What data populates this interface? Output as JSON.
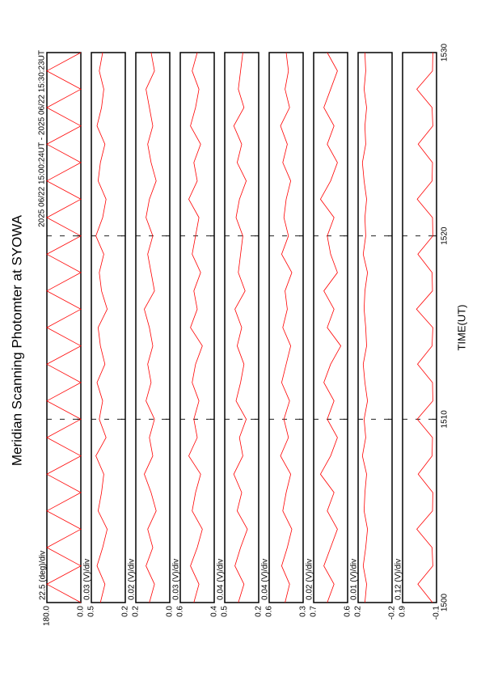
{
  "chart_data": {
    "type": "line",
    "title": "Meridian Scanning Photomter at SYOWA",
    "subtitle": "2025 06/22 15:00:24UT - 2025 06/22 15:30:23UT",
    "x_label": "TIME(UT)",
    "x": [
      1500,
      1501,
      1502,
      1503,
      1504,
      1505,
      1506,
      1507,
      1508,
      1509,
      1510,
      1511,
      1512,
      1513,
      1514,
      1515,
      1516,
      1517,
      1518,
      1519,
      1520,
      1521,
      1522,
      1523,
      1524,
      1525,
      1526,
      1527,
      1528,
      1529,
      1530
    ],
    "xlim": [
      1500,
      1530
    ],
    "xticks": [
      1500,
      1510,
      1520,
      1530
    ],
    "grid": true,
    "panels": [
      {
        "scale_label": "22.5 (deg)/div",
        "color": "#ff0000",
        "ylim": [
          0,
          180
        ],
        "yticks": [
          {
            "value": 180,
            "label": "180.0"
          },
          {
            "value": 0,
            "label": "0.0"
          }
        ],
        "values": [
          0,
          180,
          0,
          180,
          0,
          180,
          0,
          180,
          0,
          180,
          0,
          180,
          0,
          180,
          0,
          180,
          0,
          180,
          0,
          180,
          0,
          180,
          0,
          180,
          0,
          180,
          0,
          180,
          0,
          180,
          0
        ]
      },
      {
        "scale_label": "0.03 (V)/div",
        "color": "#ff0000",
        "ylim": [
          0.2,
          0.5
        ],
        "yticks": [
          0.5,
          0.2
        ],
        "values": [
          0.42,
          0.38,
          0.45,
          0.4,
          0.36,
          0.44,
          0.41,
          0.39,
          0.46,
          0.37,
          0.43,
          0.4,
          0.45,
          0.38,
          0.42,
          0.44,
          0.36,
          0.41,
          0.43,
          0.39,
          0.46,
          0.4,
          0.37,
          0.44,
          0.42,
          0.38,
          0.45,
          0.41,
          0.39,
          0.43,
          0.4
        ]
      },
      {
        "scale_label": "0.02 (V)/div",
        "color": "#ff0000",
        "ylim": [
          0,
          0.2
        ],
        "yticks": [
          0.2,
          {
            "value": 0,
            "label": "0.0"
          }
        ],
        "values": [
          0.12,
          0.09,
          0.14,
          0.1,
          0.13,
          0.08,
          0.11,
          0.15,
          0.1,
          0.12,
          0.09,
          0.14,
          0.11,
          0.13,
          0.1,
          0.12,
          0.15,
          0.09,
          0.11,
          0.13,
          0.1,
          0.14,
          0.12,
          0.08,
          0.11,
          0.13,
          0.1,
          0.12,
          0.14,
          0.09,
          0.11
        ]
      },
      {
        "scale_label": "0.03 (V)/div",
        "color": "#ff0000",
        "ylim": [
          0.4,
          0.6
        ],
        "yticks": [
          0.6,
          0.4
        ],
        "values": [
          0.52,
          0.49,
          0.54,
          0.5,
          0.47,
          0.53,
          0.51,
          0.48,
          0.55,
          0.5,
          0.52,
          0.49,
          0.53,
          0.51,
          0.47,
          0.54,
          0.5,
          0.52,
          0.48,
          0.53,
          0.51,
          0.49,
          0.55,
          0.5,
          0.52,
          0.48,
          0.54,
          0.51,
          0.49,
          0.53,
          0.5
        ]
      },
      {
        "scale_label": "0.04 (V)/div",
        "color": "#ff0000",
        "ylim": [
          0.2,
          0.5
        ],
        "yticks": [
          0.5,
          0.2
        ],
        "values": [
          0.38,
          0.33,
          0.41,
          0.36,
          0.3,
          0.39,
          0.35,
          0.42,
          0.34,
          0.37,
          0.31,
          0.4,
          0.36,
          0.33,
          0.39,
          0.35,
          0.41,
          0.32,
          0.38,
          0.36,
          0.34,
          0.4,
          0.37,
          0.31,
          0.39,
          0.35,
          0.42,
          0.33,
          0.38,
          0.36,
          0.34
        ]
      },
      {
        "scale_label": "0.04 (V)/div",
        "color": "#ff0000",
        "ylim": [
          0.3,
          0.6
        ],
        "yticks": [
          0.6,
          0.3
        ],
        "values": [
          0.46,
          0.42,
          0.49,
          0.44,
          0.4,
          0.48,
          0.45,
          0.41,
          0.5,
          0.43,
          0.47,
          0.42,
          0.49,
          0.45,
          0.41,
          0.48,
          0.44,
          0.46,
          0.4,
          0.49,
          0.43,
          0.47,
          0.45,
          0.41,
          0.48,
          0.44,
          0.5,
          0.42,
          0.46,
          0.43,
          0.45
        ]
      },
      {
        "scale_label": "0.02 (V)/div",
        "color": "#ff0000",
        "ylim": [
          0.6,
          0.7
        ],
        "yticks": [
          0.7,
          0.6
        ],
        "values": [
          0.66,
          0.64,
          0.67,
          0.65,
          0.63,
          0.66,
          0.64,
          0.68,
          0.65,
          0.63,
          0.66,
          0.64,
          0.67,
          0.65,
          0.62,
          0.66,
          0.64,
          0.67,
          0.63,
          0.65,
          0.66,
          0.64,
          0.68,
          0.65,
          0.63,
          0.66,
          0.64,
          0.67,
          0.65,
          0.63,
          0.66
        ]
      },
      {
        "scale_label": "0.01 (V)/div",
        "color": "#ff0000",
        "ylim": [
          -0.2,
          0.2
        ],
        "yticks": [
          0.2,
          -0.2
        ],
        "values": [
          0.12,
          0.1,
          0.14,
          0.11,
          0.09,
          0.13,
          0.12,
          0.1,
          0.15,
          0.11,
          0.13,
          0.09,
          0.12,
          0.14,
          0.1,
          0.11,
          0.13,
          0.12,
          0.09,
          0.14,
          0.11,
          0.12,
          0.1,
          0.13,
          0.15,
          0.11,
          0.12,
          0.1,
          0.13,
          0.11,
          0.12
        ]
      },
      {
        "scale_label": "0.12 (V)/div",
        "color": "#ff0000",
        "ylim": [
          -0.1,
          0.9
        ],
        "yticks": [
          0.9,
          -0.1
        ],
        "values": [
          0.02,
          0.45,
          0.01,
          0.03,
          0.48,
          0.02,
          0.01,
          0.44,
          0.03,
          0.02,
          0.47,
          0.01,
          0.02,
          0.46,
          0.03,
          0.01,
          0.49,
          0.02,
          0.03,
          0.45,
          0.01,
          0.02,
          0.47,
          0.03,
          0.02,
          0.44,
          0.01,
          0.03,
          0.48,
          0.02,
          0.01
        ]
      }
    ]
  }
}
